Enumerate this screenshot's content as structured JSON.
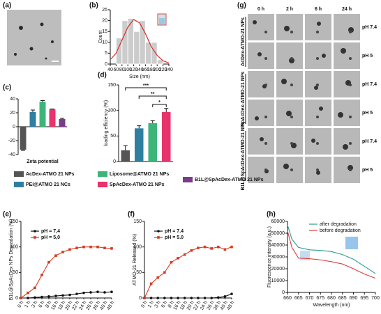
{
  "images": {
    "a": {
      "panel": "(a)"
    },
    "g": {
      "panel": "(g)",
      "columns": [
        "0 h",
        "2 h",
        "6 h",
        "24 h"
      ],
      "groups": [
        "AcDex-ATMO-21 NPs",
        "SpAcDex-ATMO-21 NPs",
        "B1L@SpAcDex-ATMO-21 NPs"
      ],
      "rows": [
        "pH 7.4",
        "pH 5",
        "pH 7.4",
        "pH 5",
        "pH 7.4",
        "pH 5"
      ]
    }
  },
  "chart_data": [
    {
      "type": "histogram",
      "panel": "(b)",
      "xlabel": "Size (nm)",
      "ylabel": "Count",
      "bins": [
        60,
        80,
        100,
        120,
        140,
        160,
        180,
        200,
        220
      ],
      "values": [
        12,
        20,
        21,
        15,
        20,
        10,
        10,
        2
      ],
      "color": "#cccccc",
      "fit": {
        "x": [
          40,
          60,
          80,
          100,
          120,
          140,
          160,
          180,
          200,
          220,
          240
        ],
        "values": [
          2,
          5,
          11,
          17,
          20.5,
          19,
          14,
          8,
          4,
          1.5,
          0.5
        ],
        "color": "#d62d2d"
      },
      "xlim": [
        40,
        240
      ],
      "xticks": [
        40,
        60,
        80,
        100,
        120,
        140,
        160,
        180,
        200,
        220,
        240
      ],
      "ylim": [
        0,
        25
      ],
      "yticks": [
        0,
        5,
        10,
        15,
        20,
        25
      ]
    },
    {
      "type": "bar",
      "panel": "(c)",
      "xlabel": "Zeta potential",
      "categories": [
        "AcDex-ATMO 21 NPs",
        "PEI@ATMO 21 NCs",
        "Liposome@ATMO 21 NPs",
        "SpAcDex-ATMO 21 NPs",
        "B1L@SpAcDex-ATMO 21 NPs"
      ],
      "values": [
        -33,
        21,
        36,
        25,
        11
      ],
      "errors": [
        1,
        3,
        1.5,
        0.5,
        1
      ],
      "colors": [
        "#555555",
        "#2e7fa0",
        "#3db57a",
        "#e8336d",
        "#7a3b8c"
      ],
      "ylim": [
        -40,
        40
      ],
      "yticks": [
        -40,
        -20,
        0,
        20,
        40
      ]
    },
    {
      "type": "bar",
      "panel": "(d)",
      "ylabel": "loading efficiency (%)",
      "values": [
        22,
        65,
        75,
        97
      ],
      "errors": [
        9,
        5,
        5,
        7
      ],
      "colors": [
        "#555555",
        "#2e7fa0",
        "#3db57a",
        "#e8336d"
      ],
      "ylim": [
        0,
        150
      ],
      "yticks": [
        0,
        50,
        100,
        150
      ],
      "annotations": [
        "***",
        "**",
        "*"
      ]
    },
    {
      "type": "line",
      "panel": "(e)",
      "ylabel": "B1L@SpAcDex NPs Degradation (%)",
      "categories": [
        "0 h",
        "1 h",
        "3 h",
        "6 h",
        "8 h",
        "16 h",
        "18 h",
        "20 h",
        "22 h",
        "24 h",
        "26 h",
        "36 h",
        "40 h",
        "48 h"
      ],
      "series": [
        {
          "name": "pH = 7,4",
          "color": "#111111",
          "marker": "circle",
          "values": [
            0,
            0,
            1,
            2,
            3,
            4,
            5,
            6,
            8,
            10,
            11,
            12,
            11,
            12
          ]
        },
        {
          "name": "pH = 5,0",
          "color": "#d63a1e",
          "marker": "square",
          "values": [
            0,
            10,
            20,
            45,
            70,
            83,
            90,
            95,
            98,
            100,
            100,
            100,
            98,
            97
          ]
        }
      ],
      "ylim": [
        0,
        150
      ],
      "yticks": [
        0,
        50,
        100,
        150
      ]
    },
    {
      "type": "line",
      "panel": "(f)",
      "ylabel": "ATMO-21 Released (%)",
      "categories": [
        "0 h",
        "1 h",
        "3 h",
        "6 h",
        "8 h",
        "16 h",
        "18 h",
        "20 h",
        "22 h",
        "24 h",
        "26 h",
        "36 h",
        "40 h",
        "48 h"
      ],
      "series": [
        {
          "name": "pH = 7.4",
          "color": "#111111",
          "marker": "circle",
          "values": [
            0,
            0,
            0,
            0,
            0,
            0,
            0,
            0,
            0,
            0,
            0,
            1,
            3,
            8
          ]
        },
        {
          "name": "pH = 5.0",
          "color": "#d63a1e",
          "marker": "square",
          "values": [
            0,
            28,
            40,
            50,
            70,
            78,
            85,
            93,
            98,
            100,
            97,
            100,
            95,
            100
          ]
        }
      ],
      "ylim": [
        0,
        150
      ],
      "yticks": [
        0,
        50,
        100,
        150
      ]
    },
    {
      "type": "line",
      "panel": "(h)",
      "xlabel": "Wavelength (nm)",
      "ylabel": "Fluorescence intensity (a.u.)",
      "x": [
        660,
        662,
        665,
        670,
        675,
        680,
        685,
        690,
        695,
        700
      ],
      "series": [
        {
          "name": "after degradation",
          "color": "#2a9d8f",
          "values": [
            57000,
            45000,
            38000,
            36000,
            35500,
            34500,
            32000,
            28000,
            22000,
            16000
          ]
        },
        {
          "name": "before degradation",
          "color": "#e03c3c",
          "values": [
            52000,
            38000,
            29000,
            28500,
            27500,
            26000,
            24000,
            20000,
            15500,
            12000
          ]
        }
      ],
      "xlim": [
        660,
        700
      ],
      "xticks": [
        660,
        665,
        670,
        675,
        680,
        685,
        690,
        695,
        700
      ],
      "ylim": [
        0,
        60000
      ],
      "yticks": [
        0,
        10000,
        20000,
        30000,
        40000,
        50000,
        60000
      ]
    }
  ]
}
